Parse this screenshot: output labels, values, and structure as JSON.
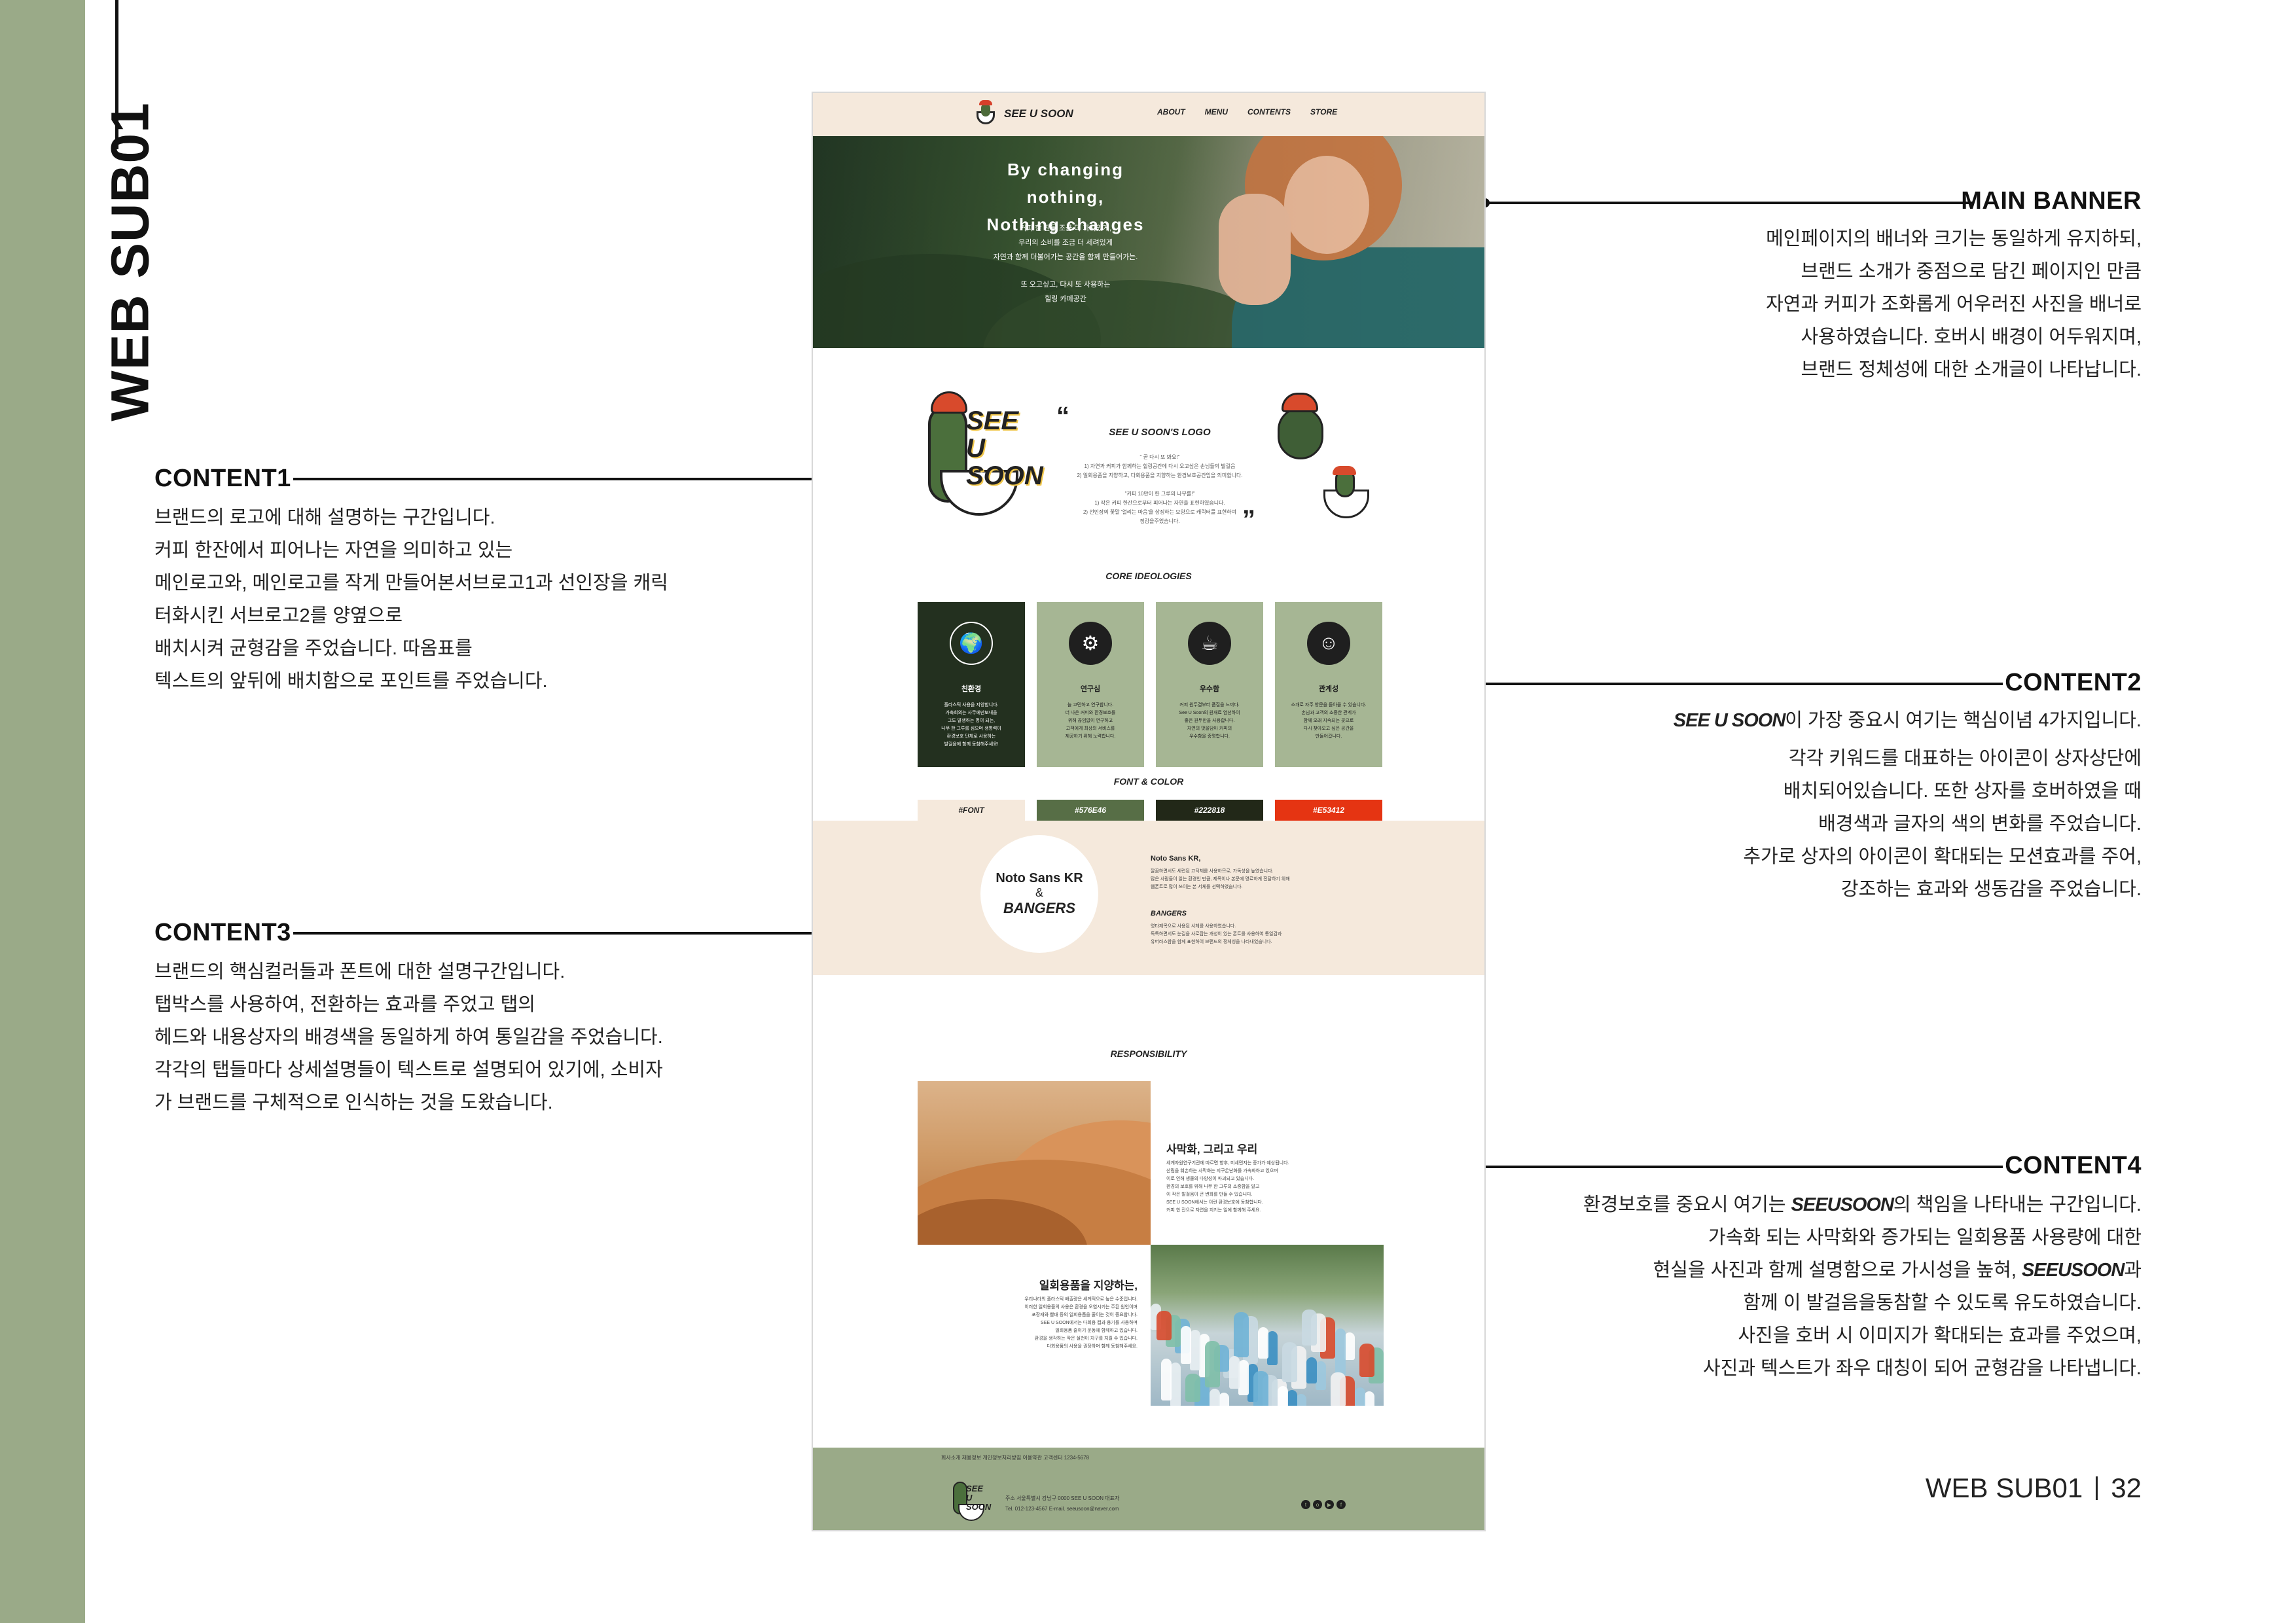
{
  "page": {
    "vertical_title": "WEB SUB01",
    "footer": {
      "label": "WEB SUB01",
      "page_number": "32"
    }
  },
  "annotations": {
    "content1": {
      "title": "CONTENT1",
      "body": "브랜드의 로고에 대해 설명하는 구간입니다.\n커피 한잔에서 피어나는 자연을 의미하고 있는\n메인로고와, 메인로고를 작게 만들어본서브로고1과 선인장을 캐릭\n터화시킨 서브로고2를 양옆으로\n배치시켜 균형감을 주었습니다. 따옴표를\n텍스트의 앞뒤에 배치함으로 포인트를 주었습니다."
    },
    "content3": {
      "title": "CONTENT3",
      "body": "브랜드의 핵심컬러들과 폰트에 대한 설명구간입니다.\n탭박스를 사용하여, 전환하는 효과를 주었고 탭의\n헤드와 내용상자의 배경색을 동일하게 하여 통일감을 주었습니다.\n각각의 탭들마다 상세설명들이 텍스트로 설명되어 있기에, 소비자\n가 브랜드를 구체적으로 인식하는 것을 도왔습니다."
    },
    "main_banner": {
      "title": "MAIN BANNER",
      "body": "메인페이지의 배너와 크기는 동일하게 유지하되,\n브랜드 소개가 중점으로 담긴 페이지인 만큼\n자연과 커피가 조화롭게 어우러진 사진을 배너로\n사용하였습니다. 호버시 배경이 어두워지며,\n브랜드 정체성에 대한 소개글이 나타납니다."
    },
    "content2": {
      "title": "CONTENT2",
      "brand": "SEE U SOON",
      "body_first": "이 가장 중요시 여기는 핵심이념 4가지입니다.",
      "body": "각각 키워드를 대표하는 아이콘이 상자상단에\n배치되어있습니다. 또한 상자를 호버하였을 때\n배경색과 글자의 색의 변화를 주었습니다.\n추가로 상자의 아이콘이 확대되는 모션효과를 주어,\n강조하는 효과와 생동감을 주었습니다."
    },
    "content4": {
      "title": "CONTENT4",
      "line1_pre": "환경보호를 중요시 여기는 ",
      "brand": "SEEUSOON",
      "line1_post": "의 책임을 나타내는 구간입니다.",
      "line2": "가속화 되는 사막화와 증가되는 일회용품 사용량에 대한",
      "line3_pre": "현실을 사진과 함께 설명함으로 가시성을 높혀, ",
      "line3_post": "과",
      "body": "함께 이 발걸음을동참할 수 있도록 유도하였습니다.\n사진을 호버 시 이미지가 확대되는 효과를 주었으며,\n사진과 텍스트가 좌우 대칭이 되어 균형감을 나타냅니다."
    }
  },
  "mockup": {
    "nav": {
      "logo_text": "SEE U SOON",
      "menu": [
        "ABOUT",
        "MENU",
        "CONTENTS",
        "STORE"
      ]
    },
    "banner": {
      "title": "By changing nothing,\nNothing changes",
      "desc": "커피 한 잔을 조금 더 가치있게,\n우리의 소비를 조금 더 세려있게\n자연과 함께 더불어가는 공간을 함께 만들어가는.",
      "desc2": "또 오고싶고, 다시 또 사용하는\n힐링 카페공간"
    },
    "logo_section": {
      "big_logo_text": "SEE U\nSOON",
      "quote_open": "“",
      "quote_close": "”",
      "title": "SEE U SOON'S  LOGO",
      "paragraph": "\" 곧 다시 또 봐요!\"\n1) 자연과 커피가 함께하는 힐링공간에 다시 오고싶은 손님들의 발걸음\n2) 일회용품을 지양하고, 다회용품을 지향하는 환경보호공간임을 의미합니다.\n\n\"커피 10만이 한 그루의 나무를!\"\n1) 작은 커피 한잔으로부터 피어나는 자연을 표현하였습니다.\n2) 선인장의 꽃말 '열리는 마음'을 상징하는 모양으로 캐릭터를 표현하여\n정감을주었습니다."
    },
    "core": {
      "title": "CORE IDEOLOGIES",
      "cards": [
        {
          "icon": "globe-hands-icon",
          "glyph": "🌍",
          "name": "친환경",
          "desc": "플라스틱 사용을 지양합니다.\n가축회의는 사무에만보내을\n그도 발생하는 명이 되는,\n나무 한 그루를 심으며 생명력이\n환경보호 단체로 사용하는\n발걸음에 함께 동참해주세요!",
          "bg": "#23301f",
          "fg": "#ffffff",
          "icbg": "#23301f",
          "icfg": "#ffffff"
        },
        {
          "icon": "gear-head-icon",
          "glyph": "⚙",
          "name": "연구심",
          "desc": "늘 고민하고 연구합니다.\n더 나은 커피와 환경보호를\n위해 끊임없이 연구하고\n고객에게 최상의 서비스를\n제공하기 위해 노력합니다.",
          "bg": "#a6b694",
          "fg": "#1f1f1f",
          "icbg": "#1f1f1f",
          "icfg": "#ffffff"
        },
        {
          "icon": "coffee-bean-icon",
          "glyph": "☕",
          "name": "우수함",
          "desc": "커피 원두결부터 품질을 느끼다.\nSee U Soon의 원재료 엄선하여\n좋은 원두만을 사용합니다.\n자연의 맛을담아 커피의\n우수함을 증명합니다.",
          "bg": "#a6b694",
          "fg": "#1f1f1f",
          "icbg": "#1f1f1f",
          "icfg": "#ffffff"
        },
        {
          "icon": "people-connect-icon",
          "glyph": "☺",
          "name": "관계성",
          "desc": "소개로 자주 방문을 돌아올 수 있습니다.\n손님과 고객의 소중한 관계가\n함께 오래 지속되는 곳으로\n다시 찾아오고 싶은 공간을\n만들어갑니다.",
          "bg": "#a6b694",
          "fg": "#1f1f1f",
          "icbg": "#1f1f1f",
          "icfg": "#ffffff"
        }
      ]
    },
    "font_color": {
      "title": "FONT & COLOR",
      "tabs": [
        {
          "label": "#FONT",
          "bg": "#f5e9dc",
          "fg": "#1f1f1f"
        },
        {
          "label": "#576E46",
          "bg": "#576e46",
          "fg": "#ffffff"
        },
        {
          "label": "#222818",
          "bg": "#222818",
          "fg": "#ffffff"
        },
        {
          "label": "#E53412",
          "bg": "#e53412",
          "fg": "#ffffff"
        }
      ],
      "circle_font1": "Noto Sans KR",
      "circle_amp": "&",
      "circle_font2": "BANGERS",
      "desc1_title": "Noto Sans KR,",
      "desc1_text": "깔끔하면서도 세련된 고딕체를 사용하므로, 가독성을 높였습니다.\n많은 사람들이 읽는 환경인 만큼, 제목이나 본문에 명료하게 전달하기 위해\n웹폰트로 많이 쓰이는 본 서체를 선택하였습니다.",
      "desc2_title": "BANGERS",
      "desc2_text": "영타제목으로 사용된 서체를 사용하였습니다.\n독특하면서도 눈길을 사로잡는 개성이 있는 폰트를 사용하여 통일감과\n유머러스함을 함께 표현하여 브랜드의 정체성을 나타내었습니다."
    },
    "responsibility": {
      "title": "RESPONSIBILITY",
      "desert_heading": "사막화, 그리고 우리",
      "desert_text": "세계자원연구기관에 따르면 향후, 미세먼지는 증가가 예상됩니다.\n산림을 훼손하는 사막화는 지구온난화를 가속화하고 있으며\n이로 인해 생물의 다양성이 파괴되고 있습니다.\n환경의 보호를 위해 나무 한 그루의 소중함을 알고\n이 작은 발걸음이 큰 변화를 만들 수 있습니다.\nSEE U SOON에서는 이런 환경보호에 동참합니다.\n커피 한 잔으로 자연을 지키는 일에 함께해 주세요.",
      "plastic_heading": "일회용품을 지양하는,",
      "plastic_text": "우리나라의 플라스틱 배출량은 세계적으로 높은 수준입니다.\n이러한 일회용품의 사용은 환경을 오염시키는 주된 원인이며\n포장재와 빨대 등의 일회용품을 줄이는 것이 중요합니다.\nSEE U SOON에서는 다회용 컵과 용기를 사용하며\n일회용품 줄이기 운동에 함께하고 있습니다.\n환경을 생각하는 작은 실천이 지구를 지킬 수 있습니다.\n다회용품의 사용을 권장하며 함께 동참해주세요."
    },
    "footer": {
      "links": "회사소개    채용정보    개인정보처리방침    이용약관    고객센터 1234-5678",
      "logo_text": "SEE U\nSOON",
      "info": "주소 서울특별시 강남구 0000    SEE U SOON 대표자\nTel. 012-123-4567    E-mail. seeusoon@naver.com",
      "social": [
        "twitter-icon",
        "instagram-icon",
        "youtube-icon",
        "facebook-icon"
      ]
    }
  }
}
